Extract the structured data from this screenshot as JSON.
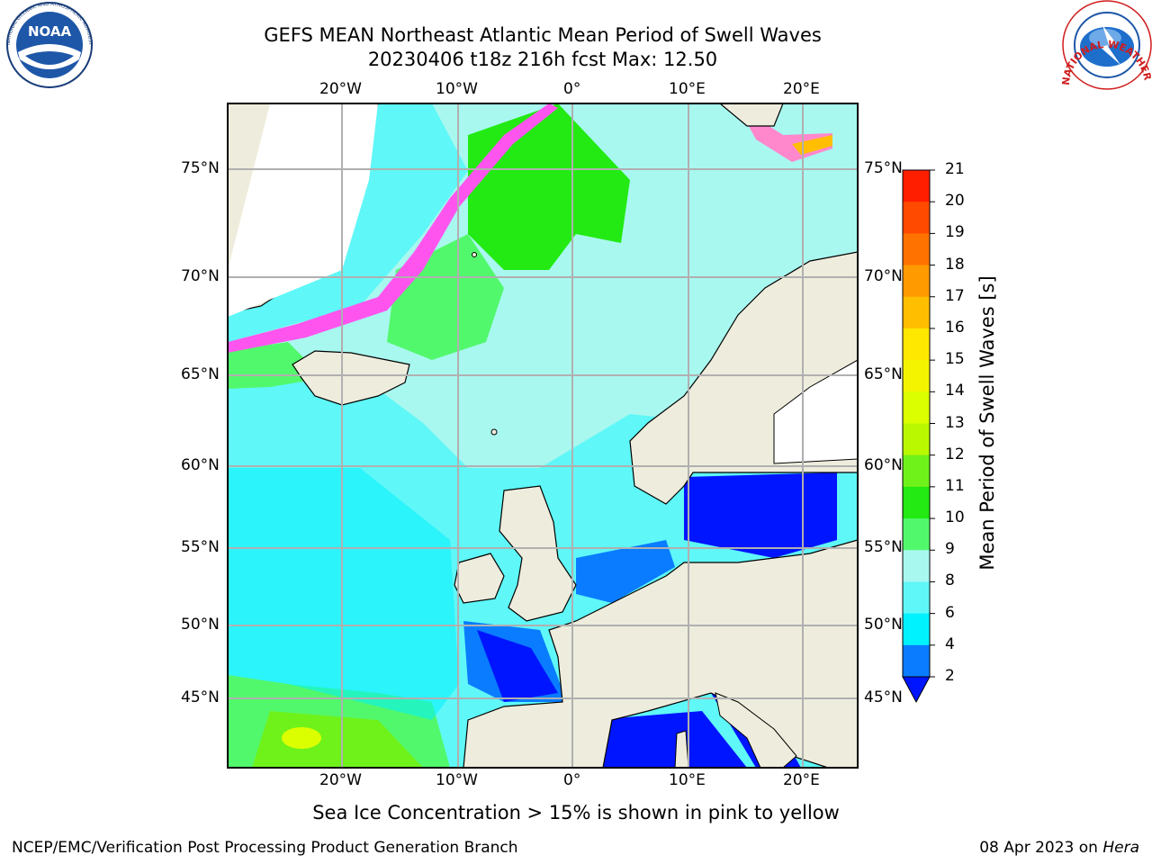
{
  "header": {
    "title_line1": "GEFS MEAN Northeast Atlantic Mean Period of Swell Waves",
    "title_line2": "20230406 t18z 216h fcst   Max: 12.50"
  },
  "map": {
    "lon_labels": [
      "20°W",
      "10°W",
      "0°",
      "10°E",
      "20°E"
    ],
    "lat_labels": [
      "75°N",
      "70°N",
      "65°N",
      "60°N",
      "55°N",
      "50°N",
      "45°N"
    ],
    "colors": {
      "land": "#eeecdc",
      "ocean_base": "#5ff7f7",
      "gridlines": "#b0b0b0"
    }
  },
  "colorbar": {
    "title": "Mean Period of Swell Waves [s]",
    "tick_labels": [
      "2",
      "4",
      "6",
      "8",
      "9",
      "10",
      "11",
      "12",
      "13",
      "14",
      "15",
      "16",
      "17",
      "18",
      "19",
      "20",
      "21"
    ],
    "colors": [
      "#0a7cff",
      "#00f2ff",
      "#5ff7f7",
      "#a8f8f0",
      "#52f86c",
      "#22ea12",
      "#6ff21a",
      "#baf800",
      "#dcff00",
      "#f4f400",
      "#ffe800",
      "#ffbf00",
      "#ff9a00",
      "#ff7200",
      "#ff4a00",
      "#ff1e00"
    ],
    "extend_color": "#0015ff"
  },
  "logos": {
    "noaa": "NOAA",
    "nws_ring": "NATIONAL WEATHER SERVICE",
    "noaa_ring": "NATIONAL OCEANIC AND ATMOSPHERIC ADMINISTRATION · U.S. DEPARTMENT OF COMMERCE"
  },
  "caption": "Sea Ice Concentration > 15% is shown in pink to yellow",
  "footer": {
    "left": "NCEP/EMC/Verification Post Processing Product Generation Branch",
    "right_date": "08 Apr 2023 on ",
    "right_machine": "Hera"
  }
}
